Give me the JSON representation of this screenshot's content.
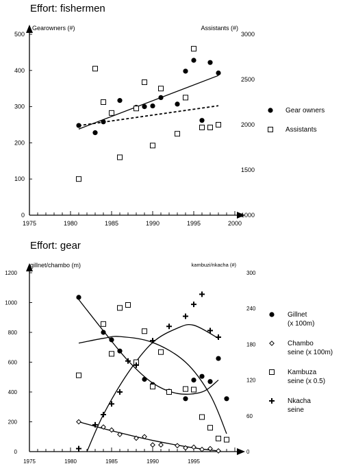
{
  "chart_data": [
    {
      "type": "scatter",
      "title": "Effort: fishermen",
      "ylabel_left": "Gearowners (#)",
      "ylabel_right": "Assistants (#)",
      "xlabel": "",
      "xlim": [
        1975,
        2000
      ],
      "ylim_left": [
        0,
        500
      ],
      "ylim_right": [
        1000,
        3000
      ],
      "x_ticks": [
        1975,
        1980,
        1985,
        1990,
        1995,
        2000
      ],
      "y_ticks_left": [
        0,
        100,
        200,
        300,
        400,
        500
      ],
      "y_ticks_right": [
        1000,
        1500,
        2000,
        2500,
        3000
      ],
      "legend_position": "right",
      "series": [
        {
          "name": "Gear owners",
          "axis": "left",
          "marker": "filled-circle",
          "x": [
            1981,
            1983,
            1984,
            1985,
            1986,
            1988,
            1989,
            1990,
            1991,
            1993,
            1994,
            1995,
            1996,
            1997,
            1998
          ],
          "y": [
            248,
            228,
            258,
            282,
            317,
            298,
            300,
            302,
            325,
            307,
            398,
            428,
            262,
            422,
            393
          ]
        },
        {
          "name": "Assistants",
          "axis": "right",
          "marker": "open-square",
          "x": [
            1981,
            1983,
            1984,
            1985,
            1986,
            1988,
            1989,
            1990,
            1991,
            1993,
            1994,
            1995,
            1996,
            1997,
            1998
          ],
          "y": [
            1400,
            2620,
            2250,
            2130,
            1640,
            2180,
            2470,
            1770,
            2400,
            1900,
            2300,
            2840,
            1970,
            1970,
            2000
          ]
        }
      ],
      "trend_lines": [
        {
          "of": "Gear owners",
          "style": "solid",
          "x": [
            1981,
            1998
          ],
          "y": [
            238,
            386
          ]
        },
        {
          "of": "Assistants",
          "style": "dashed",
          "x": [
            1981,
            1998
          ],
          "y_right": [
            1990,
            2210
          ]
        }
      ]
    },
    {
      "type": "scatter",
      "title": "Effort: gear",
      "ylabel_left": "gillnet/chambo (m)",
      "ylabel_right": "kambuzi/nkacha (#)",
      "xlabel": "",
      "xlim": [
        1975,
        2000
      ],
      "ylim_left": [
        0,
        1200
      ],
      "ylim_right": [
        0,
        300
      ],
      "x_ticks": [
        1975,
        1980,
        1985,
        1990,
        1995
      ],
      "y_ticks_left": [
        0,
        200,
        400,
        600,
        800,
        1000,
        1200
      ],
      "y_ticks_right": [
        0,
        60,
        120,
        180,
        240,
        300
      ],
      "legend_position": "right",
      "series": [
        {
          "name": "Gillnet",
          "name_note": "(x 100m)",
          "axis": "left",
          "marker": "filled-circle",
          "x": [
            1981,
            1984,
            1985,
            1986,
            1988,
            1989,
            1990,
            1992,
            1994,
            1995,
            1996,
            1997,
            1998,
            1999
          ],
          "y": [
            1035,
            800,
            750,
            675,
            595,
            485,
            450,
            405,
            355,
            480,
            505,
            470,
            625,
            355
          ]
        },
        {
          "name": "Chambo",
          "name_note": "seine (x 100m)",
          "axis": "left",
          "marker": "open-diamond",
          "x": [
            1981,
            1984,
            1985,
            1986,
            1988,
            1989,
            1990,
            1991,
            1993,
            1994,
            1995,
            1996,
            1997,
            1998
          ],
          "y": [
            200,
            165,
            145,
            115,
            90,
            100,
            45,
            45,
            40,
            25,
            30,
            15,
            20,
            5
          ]
        },
        {
          "name": "Kambuza",
          "name_note": "seine (x 0.5)",
          "axis": "right",
          "marker": "open-square",
          "x": [
            1981,
            1984,
            1985,
            1986,
            1987,
            1988,
            1989,
            1990,
            1991,
            1992,
            1994,
            1995,
            1996,
            1997,
            1998,
            1999
          ],
          "y": [
            128,
            214,
            164,
            241,
            246,
            150,
            202,
            109,
            167,
            100,
            105,
            104,
            58,
            40,
            22,
            20
          ]
        },
        {
          "name": "Nkacha",
          "name_note": "seine",
          "axis": "right",
          "marker": "plus",
          "x": [
            1981,
            1983,
            1984,
            1985,
            1986,
            1987,
            1988,
            1990,
            1992,
            1994,
            1995,
            1996,
            1997,
            1998
          ],
          "y": [
            5,
            45,
            62,
            80,
            100,
            152,
            145,
            186,
            210,
            227,
            247,
            264,
            203,
            192
          ]
        }
      ],
      "trend_lines": [
        {
          "of": "Gillnet",
          "style": "solid",
          "x": [
            1981,
            1984,
            1987,
            1990,
            1993,
            1996,
            1998
          ],
          "y": [
            1020,
            810,
            610,
            460,
            390,
            400,
            480
          ]
        },
        {
          "of": "Chambo",
          "style": "solid",
          "x": [
            1981,
            1985,
            1990,
            1995,
            1998
          ],
          "y": [
            200,
            140,
            75,
            25,
            5
          ]
        },
        {
          "of": "Kambuza",
          "style": "solid",
          "axis": "right",
          "x": [
            1981,
            1984,
            1986,
            1990,
            1994,
            1997,
            1999
          ],
          "y": [
            182,
            190,
            193,
            183,
            150,
            95,
            30
          ]
        },
        {
          "of": "Nkacha",
          "style": "solid",
          "axis": "right",
          "x": [
            1982,
            1984,
            1987,
            1990,
            1993,
            1995,
            1998
          ],
          "y": [
            0,
            62,
            132,
            183,
            207,
            212,
            190
          ]
        }
      ]
    }
  ]
}
